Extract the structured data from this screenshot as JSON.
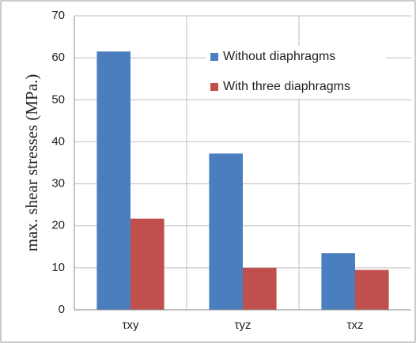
{
  "chart_data": {
    "type": "bar",
    "y_label": "max. shear stresses (MPa.)",
    "categories": [
      "τxy",
      "τyz",
      "τxz"
    ],
    "series": [
      {
        "name": "Without diaphragms",
        "color": "#4a7ebf",
        "values": [
          61.5,
          37.2,
          13.5
        ]
      },
      {
        "name": "With three diaphragms",
        "color": "#c0504d",
        "values": [
          21.7,
          10,
          9.5
        ]
      }
    ],
    "ylim": [
      0,
      70
    ],
    "yticks": [
      0,
      10,
      20,
      30,
      40,
      50,
      60,
      70
    ],
    "grid": true,
    "legend": "upper right"
  }
}
